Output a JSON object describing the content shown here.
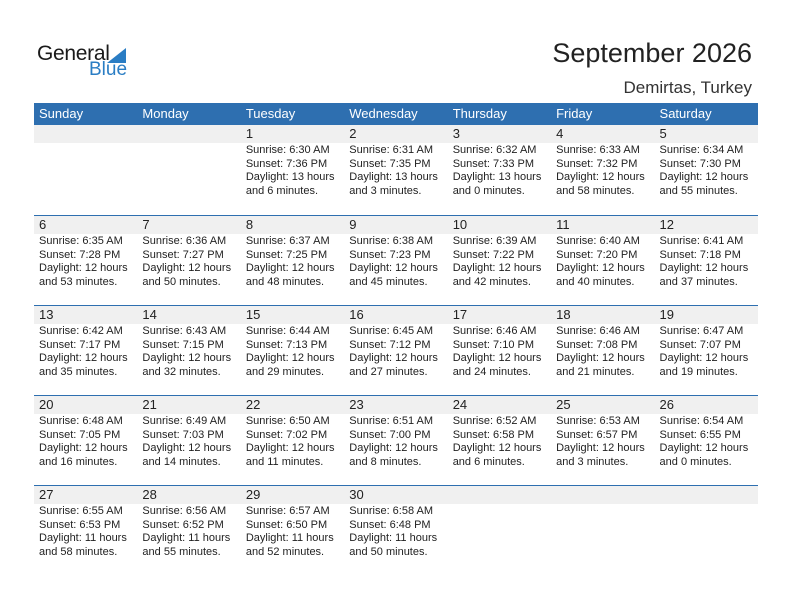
{
  "logo": {
    "word1": "General",
    "word2": "Blue"
  },
  "header": {
    "title": "September 2026",
    "location": "Demirtas, Turkey"
  },
  "days": [
    "Sunday",
    "Monday",
    "Tuesday",
    "Wednesday",
    "Thursday",
    "Friday",
    "Saturday"
  ],
  "colors": {
    "accent": "#2e6fb0",
    "band": "#f0f0f0"
  },
  "weeks": [
    [
      null,
      null,
      {
        "day": "1",
        "sunrise": "Sunrise: 6:30 AM",
        "sunset": "Sunset: 7:36 PM",
        "daylight1": "Daylight: 13 hours",
        "daylight2": "and 6 minutes."
      },
      {
        "day": "2",
        "sunrise": "Sunrise: 6:31 AM",
        "sunset": "Sunset: 7:35 PM",
        "daylight1": "Daylight: 13 hours",
        "daylight2": "and 3 minutes."
      },
      {
        "day": "3",
        "sunrise": "Sunrise: 6:32 AM",
        "sunset": "Sunset: 7:33 PM",
        "daylight1": "Daylight: 13 hours",
        "daylight2": "and 0 minutes."
      },
      {
        "day": "4",
        "sunrise": "Sunrise: 6:33 AM",
        "sunset": "Sunset: 7:32 PM",
        "daylight1": "Daylight: 12 hours",
        "daylight2": "and 58 minutes."
      },
      {
        "day": "5",
        "sunrise": "Sunrise: 6:34 AM",
        "sunset": "Sunset: 7:30 PM",
        "daylight1": "Daylight: 12 hours",
        "daylight2": "and 55 minutes."
      }
    ],
    [
      {
        "day": "6",
        "sunrise": "Sunrise: 6:35 AM",
        "sunset": "Sunset: 7:28 PM",
        "daylight1": "Daylight: 12 hours",
        "daylight2": "and 53 minutes."
      },
      {
        "day": "7",
        "sunrise": "Sunrise: 6:36 AM",
        "sunset": "Sunset: 7:27 PM",
        "daylight1": "Daylight: 12 hours",
        "daylight2": "and 50 minutes."
      },
      {
        "day": "8",
        "sunrise": "Sunrise: 6:37 AM",
        "sunset": "Sunset: 7:25 PM",
        "daylight1": "Daylight: 12 hours",
        "daylight2": "and 48 minutes."
      },
      {
        "day": "9",
        "sunrise": "Sunrise: 6:38 AM",
        "sunset": "Sunset: 7:23 PM",
        "daylight1": "Daylight: 12 hours",
        "daylight2": "and 45 minutes."
      },
      {
        "day": "10",
        "sunrise": "Sunrise: 6:39 AM",
        "sunset": "Sunset: 7:22 PM",
        "daylight1": "Daylight: 12 hours",
        "daylight2": "and 42 minutes."
      },
      {
        "day": "11",
        "sunrise": "Sunrise: 6:40 AM",
        "sunset": "Sunset: 7:20 PM",
        "daylight1": "Daylight: 12 hours",
        "daylight2": "and 40 minutes."
      },
      {
        "day": "12",
        "sunrise": "Sunrise: 6:41 AM",
        "sunset": "Sunset: 7:18 PM",
        "daylight1": "Daylight: 12 hours",
        "daylight2": "and 37 minutes."
      }
    ],
    [
      {
        "day": "13",
        "sunrise": "Sunrise: 6:42 AM",
        "sunset": "Sunset: 7:17 PM",
        "daylight1": "Daylight: 12 hours",
        "daylight2": "and 35 minutes."
      },
      {
        "day": "14",
        "sunrise": "Sunrise: 6:43 AM",
        "sunset": "Sunset: 7:15 PM",
        "daylight1": "Daylight: 12 hours",
        "daylight2": "and 32 minutes."
      },
      {
        "day": "15",
        "sunrise": "Sunrise: 6:44 AM",
        "sunset": "Sunset: 7:13 PM",
        "daylight1": "Daylight: 12 hours",
        "daylight2": "and 29 minutes."
      },
      {
        "day": "16",
        "sunrise": "Sunrise: 6:45 AM",
        "sunset": "Sunset: 7:12 PM",
        "daylight1": "Daylight: 12 hours",
        "daylight2": "and 27 minutes."
      },
      {
        "day": "17",
        "sunrise": "Sunrise: 6:46 AM",
        "sunset": "Sunset: 7:10 PM",
        "daylight1": "Daylight: 12 hours",
        "daylight2": "and 24 minutes."
      },
      {
        "day": "18",
        "sunrise": "Sunrise: 6:46 AM",
        "sunset": "Sunset: 7:08 PM",
        "daylight1": "Daylight: 12 hours",
        "daylight2": "and 21 minutes."
      },
      {
        "day": "19",
        "sunrise": "Sunrise: 6:47 AM",
        "sunset": "Sunset: 7:07 PM",
        "daylight1": "Daylight: 12 hours",
        "daylight2": "and 19 minutes."
      }
    ],
    [
      {
        "day": "20",
        "sunrise": "Sunrise: 6:48 AM",
        "sunset": "Sunset: 7:05 PM",
        "daylight1": "Daylight: 12 hours",
        "daylight2": "and 16 minutes."
      },
      {
        "day": "21",
        "sunrise": "Sunrise: 6:49 AM",
        "sunset": "Sunset: 7:03 PM",
        "daylight1": "Daylight: 12 hours",
        "daylight2": "and 14 minutes."
      },
      {
        "day": "22",
        "sunrise": "Sunrise: 6:50 AM",
        "sunset": "Sunset: 7:02 PM",
        "daylight1": "Daylight: 12 hours",
        "daylight2": "and 11 minutes."
      },
      {
        "day": "23",
        "sunrise": "Sunrise: 6:51 AM",
        "sunset": "Sunset: 7:00 PM",
        "daylight1": "Daylight: 12 hours",
        "daylight2": "and 8 minutes."
      },
      {
        "day": "24",
        "sunrise": "Sunrise: 6:52 AM",
        "sunset": "Sunset: 6:58 PM",
        "daylight1": "Daylight: 12 hours",
        "daylight2": "and 6 minutes."
      },
      {
        "day": "25",
        "sunrise": "Sunrise: 6:53 AM",
        "sunset": "Sunset: 6:57 PM",
        "daylight1": "Daylight: 12 hours",
        "daylight2": "and 3 minutes."
      },
      {
        "day": "26",
        "sunrise": "Sunrise: 6:54 AM",
        "sunset": "Sunset: 6:55 PM",
        "daylight1": "Daylight: 12 hours",
        "daylight2": "and 0 minutes."
      }
    ],
    [
      {
        "day": "27",
        "sunrise": "Sunrise: 6:55 AM",
        "sunset": "Sunset: 6:53 PM",
        "daylight1": "Daylight: 11 hours",
        "daylight2": "and 58 minutes."
      },
      {
        "day": "28",
        "sunrise": "Sunrise: 6:56 AM",
        "sunset": "Sunset: 6:52 PM",
        "daylight1": "Daylight: 11 hours",
        "daylight2": "and 55 minutes."
      },
      {
        "day": "29",
        "sunrise": "Sunrise: 6:57 AM",
        "sunset": "Sunset: 6:50 PM",
        "daylight1": "Daylight: 11 hours",
        "daylight2": "and 52 minutes."
      },
      {
        "day": "30",
        "sunrise": "Sunrise: 6:58 AM",
        "sunset": "Sunset: 6:48 PM",
        "daylight1": "Daylight: 11 hours",
        "daylight2": "and 50 minutes."
      },
      null,
      null,
      null
    ]
  ]
}
